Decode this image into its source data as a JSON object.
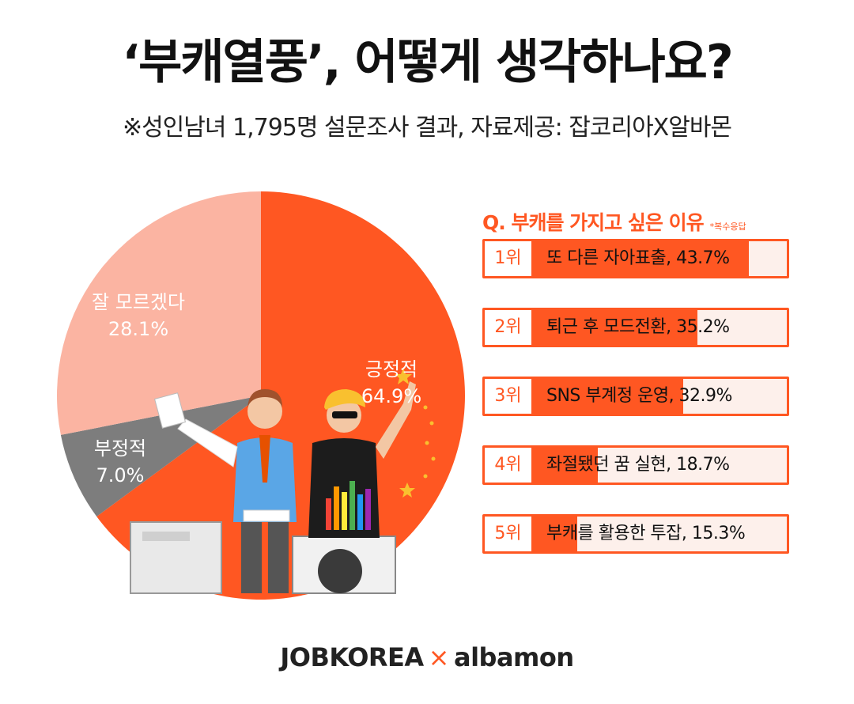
{
  "header": {
    "title": "‘부캐열풍’, 어떻게 생각하나요?",
    "subtitle": "※성인남녀 1,795명 설문조사 결과, 자료제공: 잡코리아X알바몬"
  },
  "colors": {
    "accent": "#ff5722",
    "positive": "#ff5722",
    "unknown": "#fbb4a2",
    "negative": "#7d7d7d",
    "bar_bg": "#fdf0eb"
  },
  "chart_data": [
    {
      "type": "pie",
      "slices": [
        {
          "label": "긍정적",
          "value": 64.9,
          "display": "64.9%",
          "color": "#ff5722"
        },
        {
          "label": "부정적",
          "value": 7.0,
          "display": "7.0%",
          "color": "#7d7d7d"
        },
        {
          "label": "잘 모르겠다",
          "value": 28.1,
          "display": "28.1%",
          "color": "#fbb4a2"
        }
      ]
    },
    {
      "type": "bar",
      "title": "Q. 부캐를 가지고 싶은 이유",
      "note": "*복수응답",
      "bars": [
        {
          "rank": "1위",
          "label": "또 다른 자아표출, 43.7%",
          "value": 43.7
        },
        {
          "rank": "2위",
          "label": "퇴근 후 모드전환, 35.2%",
          "value": 35.2
        },
        {
          "rank": "3위",
          "label": "SNS 부계정 운영, 32.9%",
          "value": 32.9
        },
        {
          "rank": "4위",
          "label": "좌절됐던 꿈 실현, 18.7%",
          "value": 18.7
        },
        {
          "rank": "5위",
          "label": "부캐를 활용한 투잡, 15.3%",
          "value": 15.3
        }
      ]
    }
  ],
  "footer": {
    "brand1": "JOBKOREA",
    "sep": "×",
    "brand2": "albamon"
  }
}
